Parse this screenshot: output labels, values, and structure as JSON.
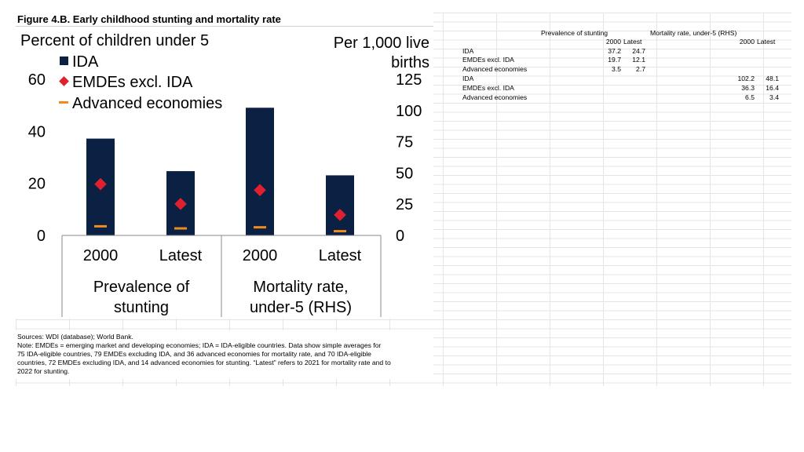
{
  "figure_title": "Figure 4.B. Early childhood stunting and mortality rate",
  "chart_data": {
    "type": "bar",
    "left_axis_label": "Percent of children under 5",
    "right_axis_label_line1": "Per 1,000 live",
    "right_axis_label_line2": "births",
    "left_ylim": [
      0,
      60
    ],
    "left_ticks": [
      "0",
      "20",
      "40",
      "60"
    ],
    "right_ylim": [
      0,
      125
    ],
    "right_ticks": [
      "0",
      "25",
      "50",
      "75",
      "100",
      "125"
    ],
    "legend": [
      "IDA",
      "EMDEs excl. IDA",
      "Advanced economies"
    ],
    "colors": {
      "ida": "#0b2144",
      "emde": "#e0202f",
      "adv": "#f28a1e"
    },
    "groups": [
      {
        "label_line1": "Prevalence of",
        "label_line2": "stunting",
        "axis": "left",
        "points": [
          {
            "x": "2000",
            "ida": 37.2,
            "emde": 19.7,
            "adv": 3.5
          },
          {
            "x": "Latest",
            "ida": 24.7,
            "emde": 12.1,
            "adv": 2.7
          }
        ]
      },
      {
        "label_line1": "Mortality rate,",
        "label_line2": "under-5 (RHS)",
        "axis": "right",
        "points": [
          {
            "x": "2000",
            "ida": 102.2,
            "emde": 36.3,
            "adv": 6.5
          },
          {
            "x": "Latest",
            "ida": 48.1,
            "emde": 16.4,
            "adv": 3.4
          }
        ]
      }
    ]
  },
  "notes": {
    "sources": "Sources: WDI (database); World Bank.",
    "line1": "Note: EMDEs = emerging market and developing economies; IDA = IDA-eligible countries. Data show simple averages for",
    "line2": "75 IDA-eligible countries, 79 EMDEs excluding IDA, and 36 advanced economies for mortality rate, and 70 IDA-eligible",
    "line3": "countries, 72 EMDEs excluding IDA, and 14 advanced economies for stunting. “Latest” refers to 2021 for mortality rate and to",
    "line4": "2022 for stunting."
  },
  "table": {
    "header1_a": "Prevalence of stunting",
    "header1_b": "Mortality rate, under-5 (RHS)",
    "col_2000": "2000",
    "col_latest": "Latest",
    "rows_a": [
      {
        "label": "IDA",
        "v2000": "37.2",
        "latest": "24.7"
      },
      {
        "label": "EMDEs excl. IDA",
        "v2000": "19.7",
        "latest": "12.1"
      },
      {
        "label": "Advanced economies",
        "v2000": "3.5",
        "latest": "2.7"
      }
    ],
    "rows_b": [
      {
        "label": "IDA",
        "v2000": "102.2",
        "latest": "48.1"
      },
      {
        "label": "EMDEs excl. IDA",
        "v2000": "36.3",
        "latest": "16.4"
      },
      {
        "label": "Advanced economies",
        "v2000": "6.5",
        "latest": "3.4"
      }
    ]
  }
}
